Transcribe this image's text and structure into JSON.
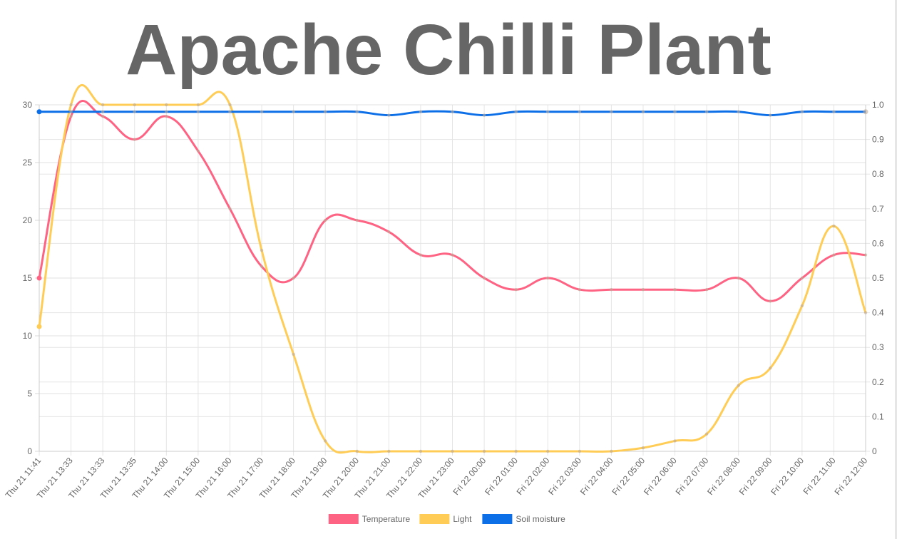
{
  "title": "Apache Chilli Plant",
  "chart_data": {
    "type": "line",
    "categories": [
      "Thu 21 11:41",
      "Thu 21 13:33",
      "Thu 21 13:33",
      "Thu 21 13:35",
      "Thu 21 14:00",
      "Thu 21 15:00",
      "Thu 21 16:00",
      "Thu 21 17:00",
      "Thu 21 18:00",
      "Thu 21 19:00",
      "Thu 21 20:00",
      "Thu 21 21:00",
      "Thu 21 22:00",
      "Thu 21 23:00",
      "Fri 22 00:00",
      "Fri 22 01:00",
      "Fri 22 02:00",
      "Fri 22 03:00",
      "Fri 22 04:00",
      "Fri 22 05:00",
      "Fri 22 06:00",
      "Fri 22 07:00",
      "Fri 22 08:00",
      "Fri 22 09:00",
      "Fri 22 10:00",
      "Fri 22 11:00",
      "Fri 22 12:00"
    ],
    "y_left": {
      "min": 0,
      "max": 30,
      "ticks": [
        "0",
        "5",
        "10",
        "15",
        "20",
        "25",
        "30"
      ]
    },
    "y_right": {
      "min": 0,
      "max": 1,
      "ticks": [
        "0",
        "0.1",
        "0.2",
        "0.3",
        "0.4",
        "0.5",
        "0.6",
        "0.7",
        "0.8",
        "0.9",
        "1.0"
      ]
    },
    "grid": true,
    "legend_position": "bottom",
    "series": [
      {
        "name": "Temperature",
        "color": "#ff6384",
        "axis": "left",
        "values": [
          15,
          29,
          29,
          27,
          29,
          26,
          21,
          16,
          15,
          20,
          20,
          19,
          17,
          17,
          15,
          14,
          15,
          14,
          14,
          14,
          14,
          14,
          15,
          13,
          15,
          17,
          17
        ]
      },
      {
        "name": "Light",
        "color": "#ffcd56",
        "axis": "right",
        "values": [
          0.36,
          1.0,
          1.0,
          1.0,
          1.0,
          1.0,
          1.0,
          0.58,
          0.28,
          0.03,
          0.0,
          0.0,
          0.0,
          0.0,
          0.0,
          0.0,
          0.0,
          0.0,
          0.0,
          0.01,
          0.03,
          0.05,
          0.19,
          0.24,
          0.42,
          0.65,
          0.4
        ]
      },
      {
        "name": "Soil moisture",
        "color": "#0d6fe8",
        "axis": "right",
        "values": [
          0.98,
          0.98,
          0.98,
          0.98,
          0.98,
          0.98,
          0.98,
          0.98,
          0.98,
          0.98,
          0.98,
          0.97,
          0.98,
          0.98,
          0.97,
          0.98,
          0.98,
          0.98,
          0.98,
          0.98,
          0.98,
          0.98,
          0.98,
          0.97,
          0.98,
          0.98,
          0.98
        ]
      }
    ]
  }
}
